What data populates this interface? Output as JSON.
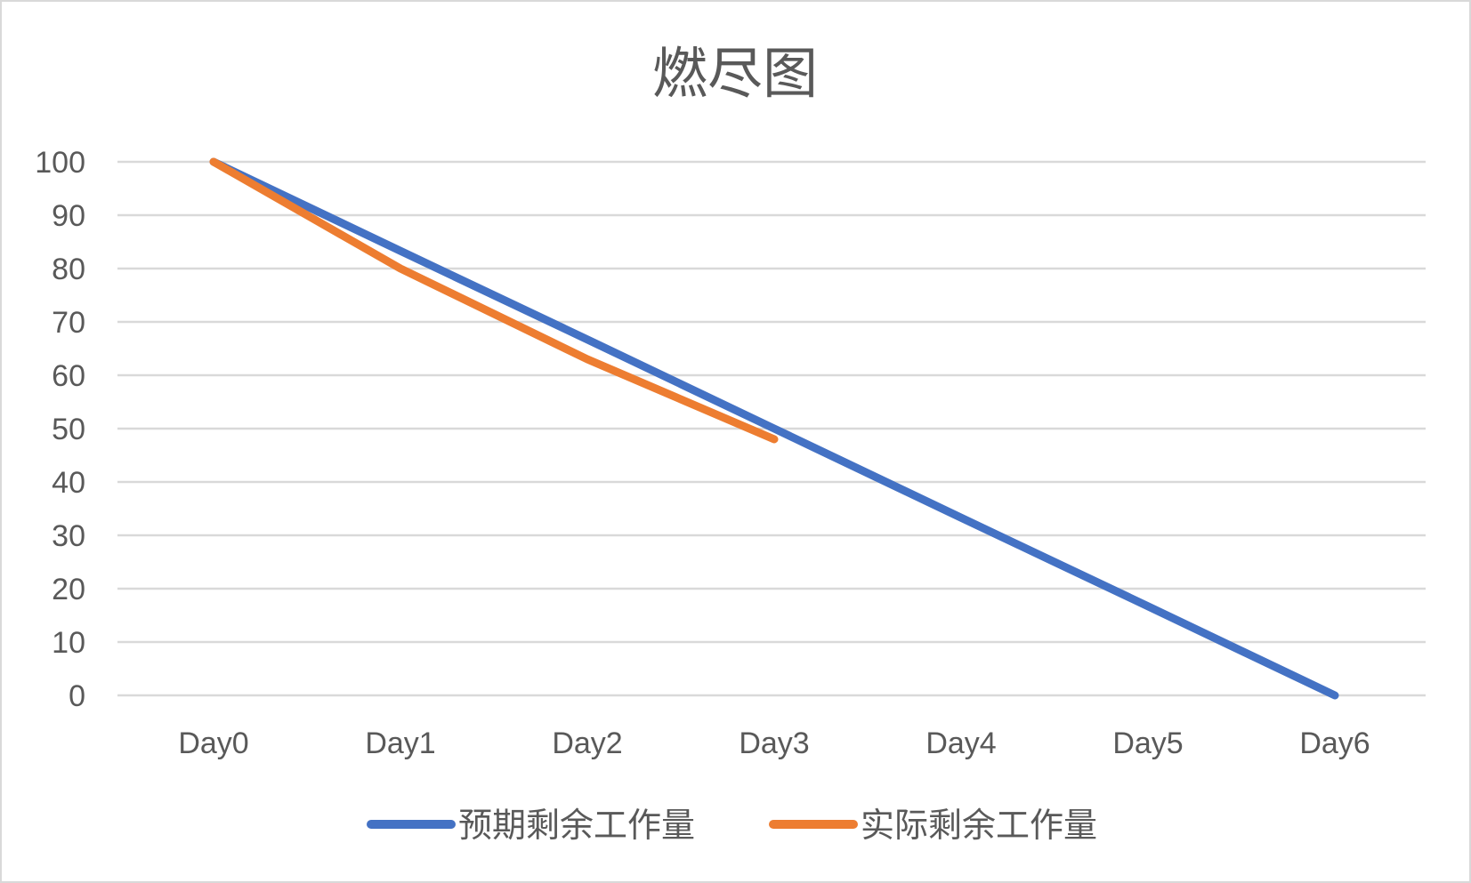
{
  "chart_data": {
    "type": "line",
    "title": "燃尽图",
    "categories": [
      "Day0",
      "Day1",
      "Day2",
      "Day3",
      "Day4",
      "Day5",
      "Day6"
    ],
    "series": [
      {
        "name": "预期剩余工作量",
        "color": "#4472c4",
        "values": [
          100,
          83.3,
          66.7,
          50,
          33.3,
          16.7,
          0
        ]
      },
      {
        "name": "实际剩余工作量",
        "color": "#ed7d31",
        "values": [
          100,
          80,
          63,
          48,
          null,
          null,
          null
        ]
      }
    ],
    "ylim": [
      0,
      100
    ],
    "yticks": [
      0,
      10,
      20,
      30,
      40,
      50,
      60,
      70,
      80,
      90,
      100
    ],
    "grid": true,
    "legend_position": "bottom"
  }
}
